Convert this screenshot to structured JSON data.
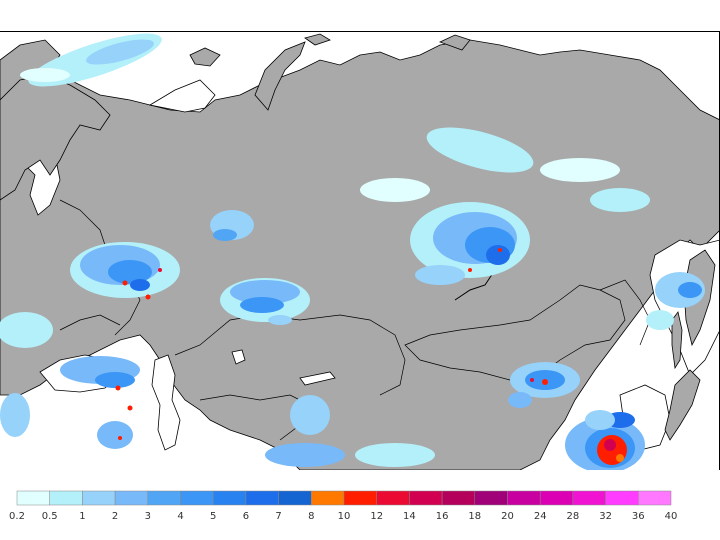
{
  "map": {
    "ocean_color": "#ffffff",
    "land_color": "#a9a9a9",
    "coast_color": "#000000"
  },
  "legend": {
    "ticks": [
      "0.2",
      "0.5",
      "1",
      "2",
      "3",
      "4",
      "5",
      "6",
      "7",
      "8",
      "10",
      "12",
      "14",
      "16",
      "18",
      "20",
      "24",
      "28",
      "32",
      "36",
      "40"
    ],
    "colors": [
      "#e1ffff",
      "#b4f0fa",
      "#96d2fa",
      "#78b9fa",
      "#50a5f5",
      "#3c96f5",
      "#2882f0",
      "#1e6eeb",
      "#1464d2",
      "#ff7800",
      "#ff1e00",
      "#eb0a32",
      "#d20050",
      "#b4005a",
      "#a00078",
      "#c800a0",
      "#dc00b4",
      "#f014d2",
      "#ff3cff",
      "#ff78ff"
    ]
  }
}
